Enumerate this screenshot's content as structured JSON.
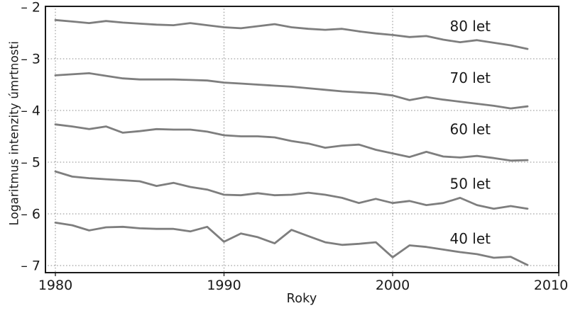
{
  "chart_data": {
    "type": "line",
    "title": "",
    "xlabel": "Roky",
    "ylabel": "Logaritmus intenzity úmrtnosti",
    "grid": "dotted",
    "legend_position": "inline-right-of-each-line",
    "xlim": [
      1979.4,
      2010.4
    ],
    "ylim": [
      -7.15,
      -1.97
    ],
    "x_ticks": [
      {
        "label": "1980",
        "year": 1980
      },
      {
        "label": "1990",
        "year": 1990
      },
      {
        "label": "2000",
        "year": 2000
      },
      {
        "label": "2010",
        "year": 2010
      }
    ],
    "y_ticks": [
      {
        "label": "– 2",
        "value": -2
      },
      {
        "label": "– 3",
        "value": -3
      },
      {
        "label": "– 4",
        "value": -4
      },
      {
        "label": "– 5",
        "value": -5
      },
      {
        "label": "– 6",
        "value": -6
      },
      {
        "label": "– 7",
        "value": -7
      }
    ],
    "x": [
      1980,
      1981,
      1982,
      1983,
      1984,
      1985,
      1986,
      1987,
      1988,
      1989,
      1990,
      1991,
      1992,
      1993,
      1994,
      1995,
      1996,
      1997,
      1998,
      1999,
      2000,
      2001,
      2002,
      2003,
      2004,
      2005,
      2006,
      2007,
      2008
    ],
    "series": [
      {
        "name": "80 let",
        "label_pos": {
          "year": 2004.6,
          "value": -2.37
        },
        "values": [
          -2.25,
          -2.28,
          -2.31,
          -2.27,
          -2.3,
          -2.32,
          -2.34,
          -2.35,
          -2.31,
          -2.35,
          -2.39,
          -2.41,
          -2.37,
          -2.33,
          -2.39,
          -2.42,
          -2.44,
          -2.42,
          -2.47,
          -2.51,
          -2.54,
          -2.58,
          -2.56,
          -2.63,
          -2.68,
          -2.64,
          -2.69,
          -2.74,
          -2.81
        ]
      },
      {
        "name": "70 let",
        "label_pos": {
          "year": 2004.6,
          "value": -3.37
        },
        "values": [
          -3.32,
          -3.3,
          -3.28,
          -3.33,
          -3.38,
          -3.4,
          -3.4,
          -3.4,
          -3.41,
          -3.42,
          -3.46,
          -3.48,
          -3.5,
          -3.52,
          -3.54,
          -3.57,
          -3.6,
          -3.63,
          -3.65,
          -3.67,
          -3.71,
          -3.8,
          -3.74,
          -3.79,
          -3.83,
          -3.87,
          -3.91,
          -3.96,
          -3.92
        ]
      },
      {
        "name": "60 let",
        "label_pos": {
          "year": 2004.6,
          "value": -4.36
        },
        "values": [
          -4.27,
          -4.31,
          -4.36,
          -4.31,
          -4.43,
          -4.4,
          -4.36,
          -4.37,
          -4.37,
          -4.41,
          -4.48,
          -4.5,
          -4.5,
          -4.52,
          -4.59,
          -4.64,
          -4.72,
          -4.68,
          -4.66,
          -4.76,
          -4.83,
          -4.9,
          -4.8,
          -4.89,
          -4.91,
          -4.88,
          -4.92,
          -4.97,
          -4.96
        ]
      },
      {
        "name": "50 let",
        "label_pos": {
          "year": 2004.6,
          "value": -5.42
        },
        "values": [
          -5.18,
          -5.28,
          -5.31,
          -5.33,
          -5.35,
          -5.37,
          -5.46,
          -5.4,
          -5.48,
          -5.53,
          -5.63,
          -5.64,
          -5.6,
          -5.64,
          -5.63,
          -5.59,
          -5.63,
          -5.69,
          -5.79,
          -5.71,
          -5.79,
          -5.75,
          -5.83,
          -5.79,
          -5.69,
          -5.83,
          -5.9,
          -5.85,
          -5.9
        ]
      },
      {
        "name": "40 let",
        "label_pos": {
          "year": 2004.6,
          "value": -6.48
        },
        "values": [
          -6.17,
          -6.22,
          -6.32,
          -6.26,
          -6.25,
          -6.28,
          -6.29,
          -6.29,
          -6.34,
          -6.25,
          -6.54,
          -6.38,
          -6.45,
          -6.57,
          -6.31,
          -6.43,
          -6.55,
          -6.6,
          -6.58,
          -6.55,
          -6.84,
          -6.61,
          -6.64,
          -6.69,
          -6.74,
          -6.78,
          -6.85,
          -6.83,
          -6.99
        ]
      }
    ],
    "colors": {
      "line": "#7e7e7e",
      "text": "#1a1a1a",
      "grid": "#8e8e8e",
      "border": "#1a1a1a",
      "background": "#ffffff"
    }
  }
}
